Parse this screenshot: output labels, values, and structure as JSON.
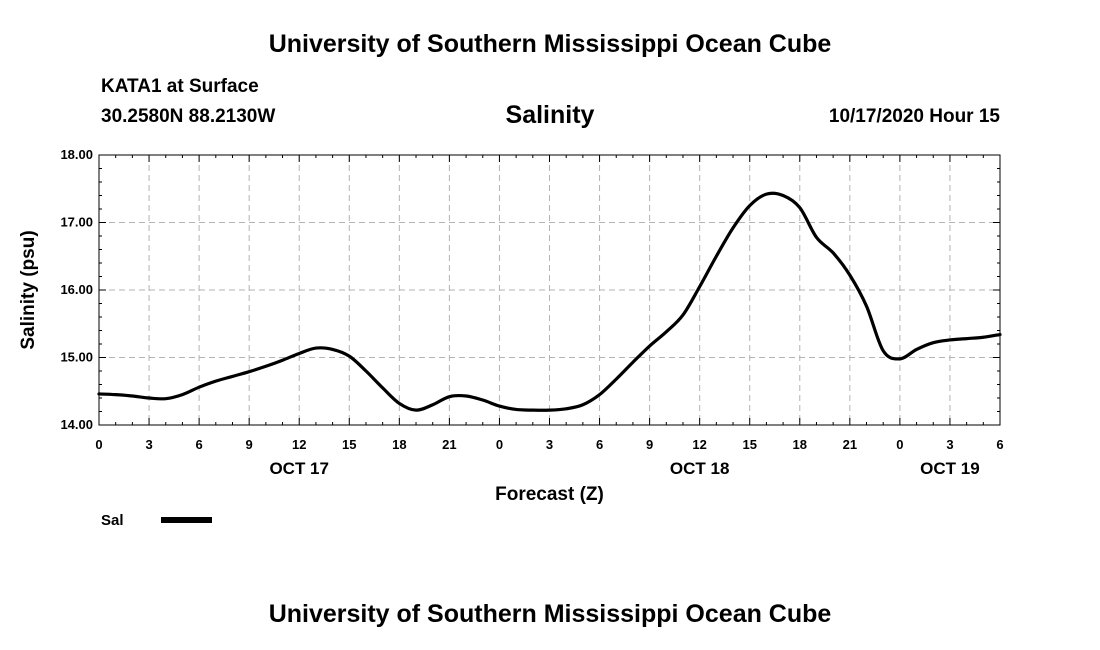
{
  "header": {
    "title": "University of Southern Mississippi Ocean Cube",
    "station": "KATA1 at Surface",
    "coordinates": "30.2580N 88.2130W",
    "plot_title": "Salinity",
    "valid_time": "10/17/2020 Hour 15"
  },
  "footer": {
    "title": "University of Southern Mississippi Ocean Cube"
  },
  "chart_data": {
    "type": "line",
    "title": "Salinity",
    "xlabel": "Forecast (Z)",
    "ylabel": "Salinity (psu)",
    "ylim": [
      14.0,
      18.0
    ],
    "yticks": [
      "14.00",
      "15.00",
      "16.00",
      "17.00",
      "18.00"
    ],
    "xlim": [
      0,
      54
    ],
    "xticks": [
      0,
      3,
      6,
      9,
      12,
      15,
      18,
      21,
      24,
      27,
      30,
      33,
      36,
      39,
      42,
      45,
      48,
      51,
      54
    ],
    "xtick_labels": [
      "0",
      "3",
      "6",
      "9",
      "12",
      "15",
      "18",
      "21",
      "0",
      "3",
      "6",
      "9",
      "12",
      "15",
      "18",
      "21",
      "0",
      "3",
      "6"
    ],
    "date_labels": [
      {
        "hour": 12,
        "label": "OCT 17"
      },
      {
        "hour": 36,
        "label": "OCT 18"
      },
      {
        "hour": 51,
        "label": "OCT 19"
      }
    ],
    "grid": true,
    "legend_position": "bottom-left",
    "series": [
      {
        "name": "Sal",
        "color": "#000000",
        "x": [
          0,
          1,
          2,
          3,
          4,
          5,
          6,
          7,
          8,
          9,
          10,
          11,
          12,
          13,
          14,
          15,
          16,
          17,
          18,
          19,
          20,
          21,
          22,
          23,
          24,
          25,
          26,
          27,
          28,
          29,
          30,
          31,
          32,
          33,
          34,
          35,
          36,
          37,
          38,
          39,
          40,
          41,
          42,
          43,
          44,
          45,
          46,
          47,
          48,
          49,
          50,
          51,
          52,
          53,
          54
        ],
        "values": [
          14.46,
          14.45,
          14.43,
          14.4,
          14.39,
          14.45,
          14.56,
          14.65,
          14.72,
          14.79,
          14.87,
          14.96,
          15.06,
          15.14,
          15.12,
          15.02,
          14.8,
          14.55,
          14.32,
          14.22,
          14.3,
          14.42,
          14.43,
          14.37,
          14.28,
          14.23,
          14.22,
          14.22,
          14.24,
          14.3,
          14.45,
          14.68,
          14.93,
          15.17,
          15.38,
          15.63,
          16.05,
          16.5,
          16.92,
          17.25,
          17.42,
          17.4,
          17.22,
          16.78,
          16.55,
          16.22,
          15.76,
          15.1,
          14.98,
          15.12,
          15.22,
          15.26,
          15.28,
          15.3,
          15.34
        ]
      }
    ]
  },
  "legend": {
    "label": "Sal"
  }
}
